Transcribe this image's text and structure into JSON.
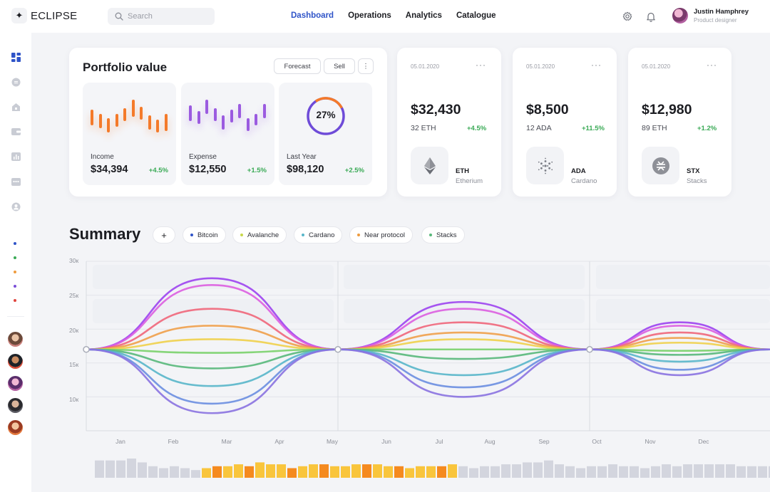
{
  "app": {
    "logo_text": "ECLIPSE"
  },
  "search": {
    "placeholder": "Search"
  },
  "nav": {
    "items": [
      "Dashboard",
      "Operations",
      "Analytics",
      "Catalogue"
    ],
    "active": "Dashboard"
  },
  "user": {
    "name": "Justin Hamphrey",
    "role": "Product designer"
  },
  "portfolio": {
    "title": "Portfolio value",
    "forecast_label": "Forecast",
    "sell_label": "Sell",
    "more_label": "⋮",
    "income": {
      "label": "Income",
      "value": "$34,394",
      "change": "+4.5%"
    },
    "expense": {
      "label": "Expense",
      "value": "$12,550",
      "change": "+1.5%"
    },
    "last_year": {
      "label": "Last Year",
      "value": "$98,120",
      "change": "+2.5%",
      "percent_label": "27%",
      "percent": 27
    }
  },
  "coins": [
    {
      "date": "05.01.2020",
      "menu": "···",
      "price": "$32,430",
      "amount": "32 ETH",
      "change": "+4.5%",
      "symbol": "ETH",
      "name": "Etherium",
      "icon": "ethereum-icon"
    },
    {
      "date": "05.01.2020",
      "menu": "···",
      "price": "$8,500",
      "amount": "12 ADA",
      "change": "+11.5%",
      "symbol": "ADA",
      "name": "Cardano",
      "icon": "cardano-icon"
    },
    {
      "date": "05.01.2020",
      "menu": "···",
      "price": "$12,980",
      "amount": "89 ETH",
      "change": "+1.2%",
      "symbol": "STX",
      "name": "Stacks",
      "icon": "stacks-icon"
    }
  ],
  "summary": {
    "title": "Summary",
    "add_label": "+",
    "filters": [
      {
        "label": "Bitcoin",
        "color": "#2f54c8"
      },
      {
        "label": "Avalanche",
        "color": "#c8d84a"
      },
      {
        "label": "Cardano",
        "color": "#58b6c9"
      },
      {
        "label": "Near protocol",
        "color": "#ef9b3e"
      },
      {
        "label": "Stacks",
        "color": "#58b87a"
      }
    ]
  },
  "colors": {
    "accent": "#2f54c8",
    "positive": "#3aaa56",
    "income": "#f47a2a",
    "expense": "#9b5be0",
    "ring": "#6e4bd8"
  },
  "chart_data": {
    "type": "line",
    "x": [
      "Jan",
      "Feb",
      "Mar",
      "Apr",
      "May",
      "Jun",
      "Jul",
      "Aug",
      "Sep",
      "Oct",
      "Nov",
      "Dec"
    ],
    "y_ticks": [
      "30к",
      "25к",
      "20к",
      "15к",
      "10к"
    ],
    "ylim": [
      5000,
      30000
    ],
    "baseline": 17000,
    "series_colors": [
      "#9c42f0",
      "#dc5ee0",
      "#f0667a",
      "#f0a04a",
      "#f0d04a",
      "#7ad26a",
      "#58b87a",
      "#58b6c9",
      "#6a8ee0",
      "#8a72e0"
    ],
    "peaks": [
      {
        "x_range": [
          "Jan",
          "May"
        ],
        "amplitudes": [
          27500,
          26500,
          23000,
          20500,
          18500,
          16500,
          14200,
          11600,
          9000,
          7600
        ]
      },
      {
        "x_range": [
          "May",
          "Oct"
        ],
        "amplitudes": [
          24000,
          23000,
          21000,
          19500,
          18500,
          17000,
          15600,
          13200,
          11400,
          10000
        ]
      },
      {
        "x_range": [
          "Oct",
          "Dec"
        ],
        "amplitudes": [
          21000,
          20500,
          19500,
          18700,
          18000,
          16800,
          16200,
          15200,
          14000,
          13200
        ]
      }
    ],
    "volume_bars": [
      9,
      9,
      9,
      10,
      8,
      6,
      5,
      6,
      5,
      4,
      5,
      6,
      6,
      7,
      6,
      8,
      7,
      7,
      5,
      6,
      7,
      7,
      6,
      6,
      7,
      7,
      7,
      6,
      6,
      5,
      6,
      6,
      6,
      7,
      6,
      5,
      6,
      6,
      7,
      7,
      8,
      8,
      9,
      7,
      6,
      5,
      6,
      6,
      7,
      6,
      6,
      5,
      6,
      7,
      6,
      7,
      7,
      7,
      7,
      7,
      6,
      6,
      6,
      6,
      6,
      6,
      6,
      6,
      6,
      7,
      6,
      6,
      6,
      6,
      6
    ],
    "volume_highlight_range": [
      10,
      33
    ]
  }
}
